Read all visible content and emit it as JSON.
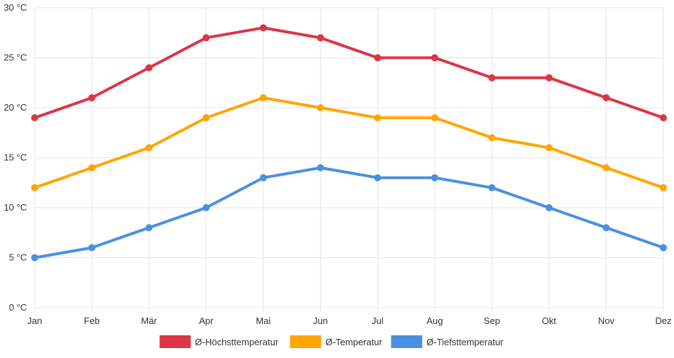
{
  "chart_data": {
    "type": "line",
    "title": "",
    "xlabel": "",
    "ylabel": "",
    "categories": [
      "Jan",
      "Feb",
      "Mär",
      "Apr",
      "Mai",
      "Jun",
      "Jul",
      "Aug",
      "Sep",
      "Okt",
      "Nov",
      "Dez"
    ],
    "y_unit": " °C",
    "ylim": [
      0,
      30
    ],
    "yticks": [
      0,
      5,
      10,
      15,
      20,
      25,
      30
    ],
    "ytick_labels": [
      "0 °C",
      "5 °C",
      "10 °C",
      "15 °C",
      "20 °C",
      "25 °C",
      "30 °C"
    ],
    "grid": true,
    "legend_position": "bottom",
    "series": [
      {
        "name": "Ø-Höchsttemperatur",
        "color": "#dc3545",
        "values": [
          19,
          21,
          24,
          27,
          28,
          27,
          25,
          25,
          23,
          23,
          21,
          19
        ]
      },
      {
        "name": "Ø-Temperatur",
        "color": "#ffa500",
        "values": [
          12,
          14,
          16,
          19,
          21,
          20,
          19,
          19,
          17,
          16,
          14,
          12
        ]
      },
      {
        "name": "Ø-Tiefsttemperatur",
        "color": "#4a90e2",
        "values": [
          5,
          6,
          8,
          10,
          13,
          14,
          13,
          13,
          12,
          10,
          8,
          6
        ]
      }
    ]
  }
}
